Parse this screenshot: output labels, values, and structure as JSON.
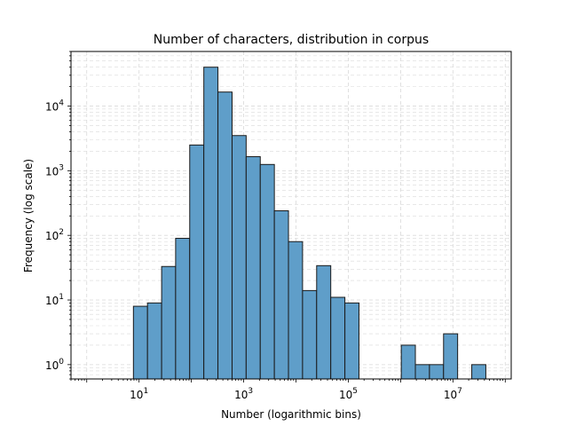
{
  "chart_data": {
    "type": "bar",
    "title": "Number of characters, distribution in corpus",
    "xlabel": "Number (logarithmic bins)",
    "ylabel": "Frequency (log scale)",
    "x_scale": "log",
    "y_scale": "log",
    "xlim": [
      0.5,
      130000000
    ],
    "ylim": [
      0.6,
      70000
    ],
    "grid": true,
    "bar_color": "#5f9ec9",
    "edge_color": "#1a1a1a",
    "x_ticks": [
      {
        "base": "10",
        "exp": "1",
        "value": 10
      },
      {
        "base": "10",
        "exp": "3",
        "value": 1000
      },
      {
        "base": "10",
        "exp": "5",
        "value": 100000
      },
      {
        "base": "10",
        "exp": "7",
        "value": 10000000
      }
    ],
    "y_ticks": [
      {
        "base": "10",
        "exp": "0",
        "value": 1
      },
      {
        "base": "10",
        "exp": "1",
        "value": 10
      },
      {
        "base": "10",
        "exp": "2",
        "value": 100
      },
      {
        "base": "10",
        "exp": "3",
        "value": 1000
      },
      {
        "base": "10",
        "exp": "4",
        "value": 10000
      }
    ],
    "bins": [
      {
        "x0": 7.8,
        "x1": 14.5,
        "count": 8
      },
      {
        "x0": 14.5,
        "x1": 27,
        "count": 9
      },
      {
        "x0": 27,
        "x1": 50,
        "count": 33
      },
      {
        "x0": 50,
        "x1": 93,
        "count": 90
      },
      {
        "x0": 93,
        "x1": 173,
        "count": 2500
      },
      {
        "x0": 173,
        "x1": 322,
        "count": 40000
      },
      {
        "x0": 322,
        "x1": 600,
        "count": 16500
      },
      {
        "x0": 600,
        "x1": 1115,
        "count": 3500
      },
      {
        "x0": 1115,
        "x1": 2075,
        "count": 1650
      },
      {
        "x0": 2075,
        "x1": 3860,
        "count": 1250
      },
      {
        "x0": 3860,
        "x1": 7180,
        "count": 240
      },
      {
        "x0": 7180,
        "x1": 13350,
        "count": 80
      },
      {
        "x0": 13350,
        "x1": 24830,
        "count": 14
      },
      {
        "x0": 24830,
        "x1": 46200,
        "count": 34
      },
      {
        "x0": 46200,
        "x1": 86000,
        "count": 11
      },
      {
        "x0": 86000,
        "x1": 160000,
        "count": 9
      },
      {
        "x0": 160000,
        "x1": 297000,
        "count": 0
      },
      {
        "x0": 297000,
        "x1": 553000,
        "count": 0
      },
      {
        "x0": 553000,
        "x1": 1030000,
        "count": 0
      },
      {
        "x0": 1030000,
        "x1": 1914000,
        "count": 2
      },
      {
        "x0": 1914000,
        "x1": 3560000,
        "count": 1
      },
      {
        "x0": 3560000,
        "x1": 6620000,
        "count": 1
      },
      {
        "x0": 6620000,
        "x1": 12300000,
        "count": 3
      },
      {
        "x0": 12300000,
        "x1": 22900000,
        "count": 0
      },
      {
        "x0": 22900000,
        "x1": 42600000,
        "count": 1
      }
    ]
  }
}
